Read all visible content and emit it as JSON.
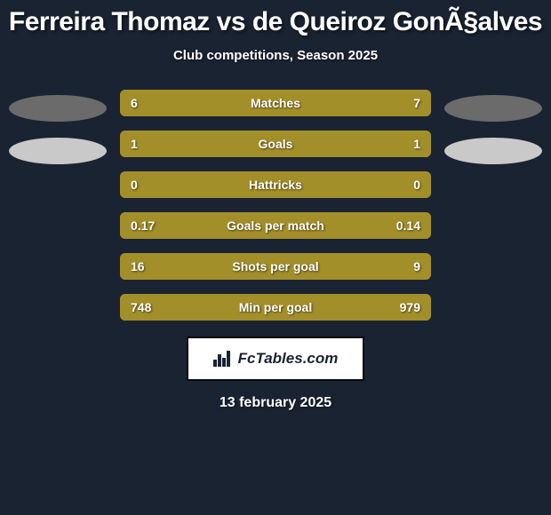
{
  "title": "Ferreira Thomaz vs de Queiroz GonÃ§alves",
  "subtitle": "Club competitions, Season 2025",
  "date": "13 february 2025",
  "logo_text": "FcTables.com",
  "colors": {
    "background": "#1a2332",
    "bar_base": "#a38f2a",
    "left_fill": "#a38f2a",
    "right_fill": "#a38f2a",
    "ellipse_left": "#6b6b6b",
    "ellipse_right": "#5a5a5a",
    "text": "#ffffff"
  },
  "left_ellipses": [
    {
      "color": "#6b6b6b"
    },
    {
      "color": "#c9c9c9"
    }
  ],
  "right_ellipses": [
    {
      "color": "#6b6b6b"
    },
    {
      "color": "#c9c9c9"
    }
  ],
  "stats": [
    {
      "label": "Matches",
      "left_val": "6",
      "right_val": "7",
      "left_pct": 46,
      "right_pct": 54
    },
    {
      "label": "Goals",
      "left_val": "1",
      "right_val": "1",
      "left_pct": 50,
      "right_pct": 50
    },
    {
      "label": "Hattricks",
      "left_val": "0",
      "right_val": "0",
      "left_pct": 50,
      "right_pct": 50
    },
    {
      "label": "Goals per match",
      "left_val": "0.17",
      "right_val": "0.14",
      "left_pct": 55,
      "right_pct": 45
    },
    {
      "label": "Shots per goal",
      "left_val": "16",
      "right_val": "9",
      "left_pct": 64,
      "right_pct": 36
    },
    {
      "label": "Min per goal",
      "left_val": "748",
      "right_val": "979",
      "left_pct": 43,
      "right_pct": 57
    }
  ]
}
